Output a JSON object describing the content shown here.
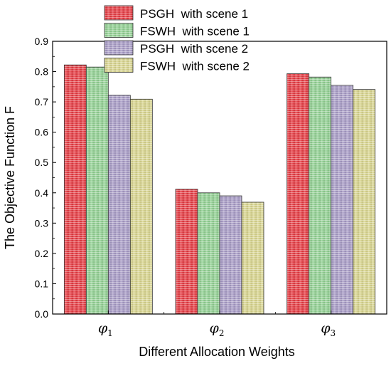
{
  "chart_data": {
    "type": "bar",
    "title": "",
    "xlabel": "Different Allocation Weights",
    "ylabel": "The Objective Function F",
    "ylim": [
      0,
      0.9
    ],
    "yticks": [
      "0.0",
      "0.1",
      "0.2",
      "0.3",
      "0.4",
      "0.5",
      "0.6",
      "0.7",
      "0.8",
      "0.9"
    ],
    "categories": [
      {
        "base": "φ",
        "sub": "1"
      },
      {
        "base": "φ",
        "sub": "2"
      },
      {
        "base": "φ",
        "sub": "3"
      }
    ],
    "series": [
      {
        "name": "PSGH  with scene 1",
        "color": "#e8323a",
        "values": [
          0.822,
          0.412,
          0.793
        ]
      },
      {
        "name": "FSWH  with scene 1",
        "color": "#8ed18f",
        "values": [
          0.815,
          0.4,
          0.782
        ]
      },
      {
        "name": "PSGH  with scene 2",
        "color": "#a598c6",
        "values": [
          0.722,
          0.39,
          0.755
        ]
      },
      {
        "name": "FSWH  with scene 2",
        "color": "#d9d68a",
        "values": [
          0.709,
          0.369,
          0.741
        ]
      }
    ],
    "legend_position": "top-left",
    "grid": false
  }
}
